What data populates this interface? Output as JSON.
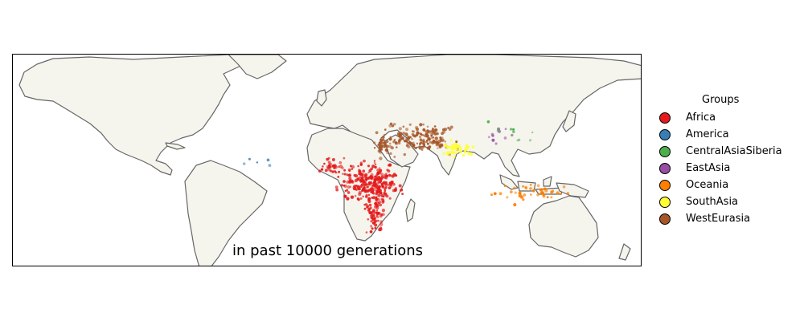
{
  "caption": "in past 10000 generations",
  "legend": {
    "title": "Groups",
    "items": [
      {
        "label": "Africa",
        "color": "#e41a1c"
      },
      {
        "label": "America",
        "color": "#377eb8"
      },
      {
        "label": "CentralAsiaSiberia",
        "color": "#4daf4a"
      },
      {
        "label": "EastAsia",
        "color": "#984ea3"
      },
      {
        "label": "Oceania",
        "color": "#ff7f00"
      },
      {
        "label": "SouthAsia",
        "color": "#ffff33"
      },
      {
        "label": "WestEurasia",
        "color": "#a65628"
      }
    ]
  },
  "colors": {
    "land": "#f5f5ee",
    "coast": "#666666"
  }
}
